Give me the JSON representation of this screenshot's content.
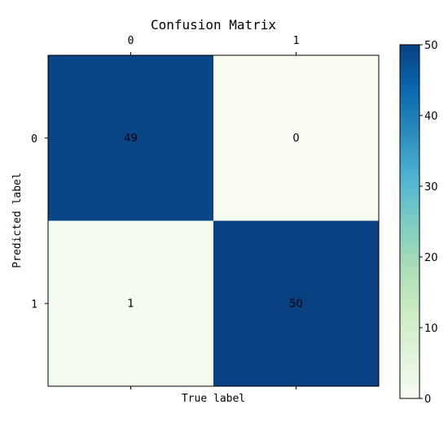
{
  "chart_data": {
    "type": "heatmap",
    "title": "Confusion Matrix",
    "xlabel": "True label",
    "ylabel": "Predicted label",
    "x_categories": [
      "0",
      "1"
    ],
    "y_categories": [
      "0",
      "1"
    ],
    "values": [
      [
        49,
        0
      ],
      [
        1,
        50
      ]
    ],
    "value_range": [
      0,
      50
    ],
    "colormap": "GnBu",
    "colorbar_ticks": [
      0,
      10,
      20,
      30,
      40,
      50
    ],
    "x_ticks_position": "top",
    "grid": false,
    "colors": {
      "low": "#f7fcf0",
      "high": "#084081"
    }
  }
}
